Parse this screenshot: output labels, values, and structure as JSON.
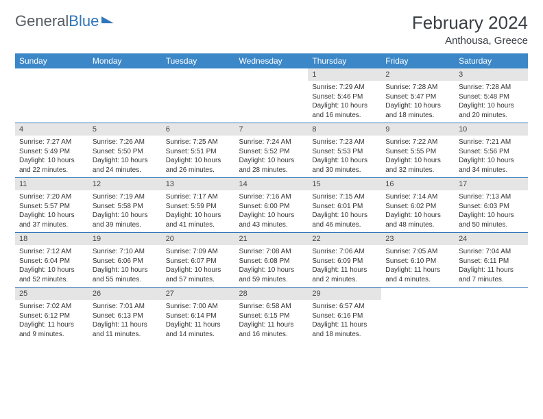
{
  "logo": {
    "text1": "General",
    "text2": "Blue"
  },
  "title": "February 2024",
  "location": "Anthousa, Greece",
  "colors": {
    "header_bg": "#3b87c8",
    "header_text": "#ffffff",
    "border": "#2f76ba",
    "daynum_bg": "#e5e5e5",
    "text": "#333333"
  },
  "day_headers": [
    "Sunday",
    "Monday",
    "Tuesday",
    "Wednesday",
    "Thursday",
    "Friday",
    "Saturday"
  ],
  "weeks": [
    [
      {
        "n": "",
        "sr": "",
        "ss": "",
        "dl1": "",
        "dl2": ""
      },
      {
        "n": "",
        "sr": "",
        "ss": "",
        "dl1": "",
        "dl2": ""
      },
      {
        "n": "",
        "sr": "",
        "ss": "",
        "dl1": "",
        "dl2": ""
      },
      {
        "n": "",
        "sr": "",
        "ss": "",
        "dl1": "",
        "dl2": ""
      },
      {
        "n": "1",
        "sr": "Sunrise: 7:29 AM",
        "ss": "Sunset: 5:46 PM",
        "dl1": "Daylight: 10 hours",
        "dl2": "and 16 minutes."
      },
      {
        "n": "2",
        "sr": "Sunrise: 7:28 AM",
        "ss": "Sunset: 5:47 PM",
        "dl1": "Daylight: 10 hours",
        "dl2": "and 18 minutes."
      },
      {
        "n": "3",
        "sr": "Sunrise: 7:28 AM",
        "ss": "Sunset: 5:48 PM",
        "dl1": "Daylight: 10 hours",
        "dl2": "and 20 minutes."
      }
    ],
    [
      {
        "n": "4",
        "sr": "Sunrise: 7:27 AM",
        "ss": "Sunset: 5:49 PM",
        "dl1": "Daylight: 10 hours",
        "dl2": "and 22 minutes."
      },
      {
        "n": "5",
        "sr": "Sunrise: 7:26 AM",
        "ss": "Sunset: 5:50 PM",
        "dl1": "Daylight: 10 hours",
        "dl2": "and 24 minutes."
      },
      {
        "n": "6",
        "sr": "Sunrise: 7:25 AM",
        "ss": "Sunset: 5:51 PM",
        "dl1": "Daylight: 10 hours",
        "dl2": "and 26 minutes."
      },
      {
        "n": "7",
        "sr": "Sunrise: 7:24 AM",
        "ss": "Sunset: 5:52 PM",
        "dl1": "Daylight: 10 hours",
        "dl2": "and 28 minutes."
      },
      {
        "n": "8",
        "sr": "Sunrise: 7:23 AM",
        "ss": "Sunset: 5:53 PM",
        "dl1": "Daylight: 10 hours",
        "dl2": "and 30 minutes."
      },
      {
        "n": "9",
        "sr": "Sunrise: 7:22 AM",
        "ss": "Sunset: 5:55 PM",
        "dl1": "Daylight: 10 hours",
        "dl2": "and 32 minutes."
      },
      {
        "n": "10",
        "sr": "Sunrise: 7:21 AM",
        "ss": "Sunset: 5:56 PM",
        "dl1": "Daylight: 10 hours",
        "dl2": "and 34 minutes."
      }
    ],
    [
      {
        "n": "11",
        "sr": "Sunrise: 7:20 AM",
        "ss": "Sunset: 5:57 PM",
        "dl1": "Daylight: 10 hours",
        "dl2": "and 37 minutes."
      },
      {
        "n": "12",
        "sr": "Sunrise: 7:19 AM",
        "ss": "Sunset: 5:58 PM",
        "dl1": "Daylight: 10 hours",
        "dl2": "and 39 minutes."
      },
      {
        "n": "13",
        "sr": "Sunrise: 7:17 AM",
        "ss": "Sunset: 5:59 PM",
        "dl1": "Daylight: 10 hours",
        "dl2": "and 41 minutes."
      },
      {
        "n": "14",
        "sr": "Sunrise: 7:16 AM",
        "ss": "Sunset: 6:00 PM",
        "dl1": "Daylight: 10 hours",
        "dl2": "and 43 minutes."
      },
      {
        "n": "15",
        "sr": "Sunrise: 7:15 AM",
        "ss": "Sunset: 6:01 PM",
        "dl1": "Daylight: 10 hours",
        "dl2": "and 46 minutes."
      },
      {
        "n": "16",
        "sr": "Sunrise: 7:14 AM",
        "ss": "Sunset: 6:02 PM",
        "dl1": "Daylight: 10 hours",
        "dl2": "and 48 minutes."
      },
      {
        "n": "17",
        "sr": "Sunrise: 7:13 AM",
        "ss": "Sunset: 6:03 PM",
        "dl1": "Daylight: 10 hours",
        "dl2": "and 50 minutes."
      }
    ],
    [
      {
        "n": "18",
        "sr": "Sunrise: 7:12 AM",
        "ss": "Sunset: 6:04 PM",
        "dl1": "Daylight: 10 hours",
        "dl2": "and 52 minutes."
      },
      {
        "n": "19",
        "sr": "Sunrise: 7:10 AM",
        "ss": "Sunset: 6:06 PM",
        "dl1": "Daylight: 10 hours",
        "dl2": "and 55 minutes."
      },
      {
        "n": "20",
        "sr": "Sunrise: 7:09 AM",
        "ss": "Sunset: 6:07 PM",
        "dl1": "Daylight: 10 hours",
        "dl2": "and 57 minutes."
      },
      {
        "n": "21",
        "sr": "Sunrise: 7:08 AM",
        "ss": "Sunset: 6:08 PM",
        "dl1": "Daylight: 10 hours",
        "dl2": "and 59 minutes."
      },
      {
        "n": "22",
        "sr": "Sunrise: 7:06 AM",
        "ss": "Sunset: 6:09 PM",
        "dl1": "Daylight: 11 hours",
        "dl2": "and 2 minutes."
      },
      {
        "n": "23",
        "sr": "Sunrise: 7:05 AM",
        "ss": "Sunset: 6:10 PM",
        "dl1": "Daylight: 11 hours",
        "dl2": "and 4 minutes."
      },
      {
        "n": "24",
        "sr": "Sunrise: 7:04 AM",
        "ss": "Sunset: 6:11 PM",
        "dl1": "Daylight: 11 hours",
        "dl2": "and 7 minutes."
      }
    ],
    [
      {
        "n": "25",
        "sr": "Sunrise: 7:02 AM",
        "ss": "Sunset: 6:12 PM",
        "dl1": "Daylight: 11 hours",
        "dl2": "and 9 minutes."
      },
      {
        "n": "26",
        "sr": "Sunrise: 7:01 AM",
        "ss": "Sunset: 6:13 PM",
        "dl1": "Daylight: 11 hours",
        "dl2": "and 11 minutes."
      },
      {
        "n": "27",
        "sr": "Sunrise: 7:00 AM",
        "ss": "Sunset: 6:14 PM",
        "dl1": "Daylight: 11 hours",
        "dl2": "and 14 minutes."
      },
      {
        "n": "28",
        "sr": "Sunrise: 6:58 AM",
        "ss": "Sunset: 6:15 PM",
        "dl1": "Daylight: 11 hours",
        "dl2": "and 16 minutes."
      },
      {
        "n": "29",
        "sr": "Sunrise: 6:57 AM",
        "ss": "Sunset: 6:16 PM",
        "dl1": "Daylight: 11 hours",
        "dl2": "and 18 minutes."
      },
      {
        "n": "",
        "sr": "",
        "ss": "",
        "dl1": "",
        "dl2": ""
      },
      {
        "n": "",
        "sr": "",
        "ss": "",
        "dl1": "",
        "dl2": ""
      }
    ]
  ]
}
